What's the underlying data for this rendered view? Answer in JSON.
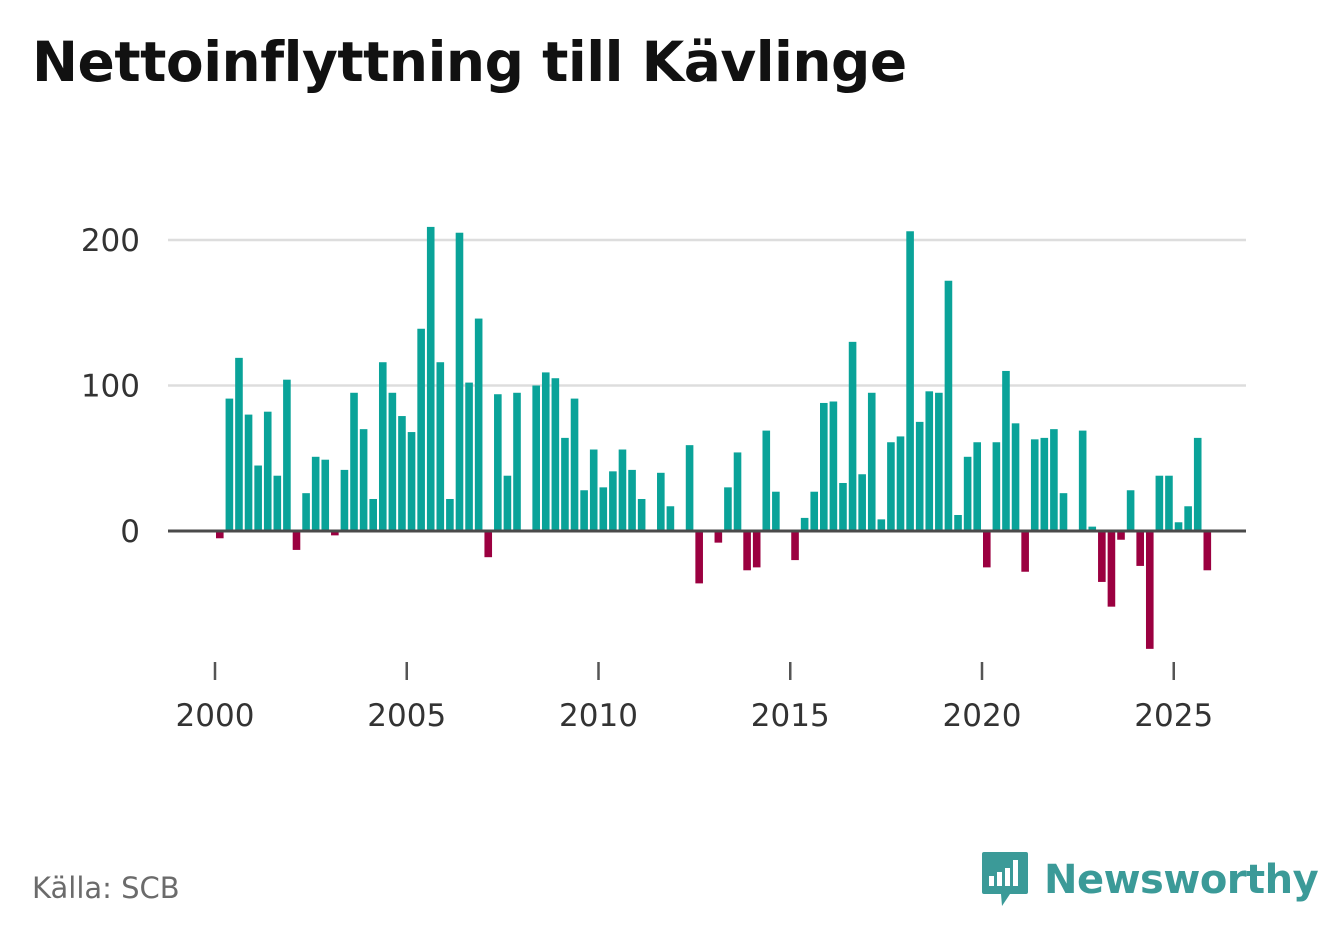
{
  "title": "Nettoinflyttning till Kävlinge",
  "source": "Källa: SCB",
  "brand": "Newsworthy",
  "colors": {
    "positive": "#0aa399",
    "negative": "#9b0040",
    "grid": "#dddddd",
    "zero": "#4a4a4a",
    "brand": "#3b9a98"
  },
  "chart_data": {
    "type": "bar",
    "title": "Nettoinflyttning till Kävlinge",
    "xlabel": "",
    "ylabel": "",
    "ylim": [
      -95,
      225
    ],
    "xlim": [
      1997.6,
      2027.0
    ],
    "y_ticks": [
      0,
      100,
      200
    ],
    "x_ticks": [
      2000,
      2005,
      2010,
      2015,
      2020,
      2025
    ],
    "series": [
      {
        "name": "Nettoinflyttning",
        "x": [
          2000.125,
          2000.375,
          2000.625,
          2000.875,
          2001.125,
          2001.375,
          2001.625,
          2001.875,
          2002.125,
          2002.375,
          2002.625,
          2002.875,
          2003.125,
          2003.375,
          2003.625,
          2003.875,
          2004.125,
          2004.375,
          2004.625,
          2004.875,
          2005.125,
          2005.375,
          2005.625,
          2005.875,
          2006.125,
          2006.375,
          2006.625,
          2006.875,
          2007.125,
          2007.375,
          2007.625,
          2007.875,
          2008.125,
          2008.375,
          2008.625,
          2008.875,
          2009.125,
          2009.375,
          2009.625,
          2009.875,
          2010.125,
          2010.375,
          2010.625,
          2010.875,
          2011.125,
          2011.375,
          2011.625,
          2011.875,
          2012.125,
          2012.375,
          2012.625,
          2012.875,
          2013.125,
          2013.375,
          2013.625,
          2013.875,
          2014.125,
          2014.375,
          2014.625,
          2014.875,
          2015.125,
          2015.375,
          2015.625,
          2015.875,
          2016.125,
          2016.375,
          2016.625,
          2016.875,
          2017.125,
          2017.375,
          2017.625,
          2017.875,
          2018.125,
          2018.375,
          2018.625,
          2018.875,
          2019.125,
          2019.375,
          2019.625,
          2019.875,
          2020.125,
          2020.375,
          2020.625,
          2020.875,
          2021.125,
          2021.375,
          2021.625,
          2021.875,
          2022.125,
          2022.375,
          2022.625,
          2022.875,
          2023.125,
          2023.375,
          2023.625,
          2023.875,
          2024.125,
          2024.375,
          2024.625,
          2024.875,
          2025.125,
          2025.375,
          2025.625,
          2025.875
        ],
        "values": [
          -5,
          91,
          119,
          80,
          45,
          82,
          38,
          104,
          -13,
          26,
          51,
          49,
          -3,
          42,
          95,
          70,
          22,
          116,
          95,
          79,
          68,
          139,
          209,
          116,
          22,
          205,
          102,
          146,
          -18,
          94,
          38,
          95,
          0,
          100,
          109,
          105,
          64,
          91,
          28,
          56,
          30,
          41,
          56,
          42,
          22,
          0,
          40,
          17,
          0,
          59,
          -36,
          0,
          -8,
          30,
          54,
          -27,
          -25,
          69,
          27,
          0,
          -20,
          9,
          27,
          88,
          89,
          33,
          130,
          39,
          95,
          8,
          61,
          65,
          206,
          75,
          96,
          95,
          172,
          11,
          51,
          61,
          -25,
          61,
          110,
          74,
          -28,
          63,
          64,
          70,
          26,
          0,
          69,
          3,
          -35,
          -52,
          -6,
          28,
          -24,
          -81,
          38,
          38,
          6,
          17,
          64,
          -27
        ]
      }
    ]
  }
}
